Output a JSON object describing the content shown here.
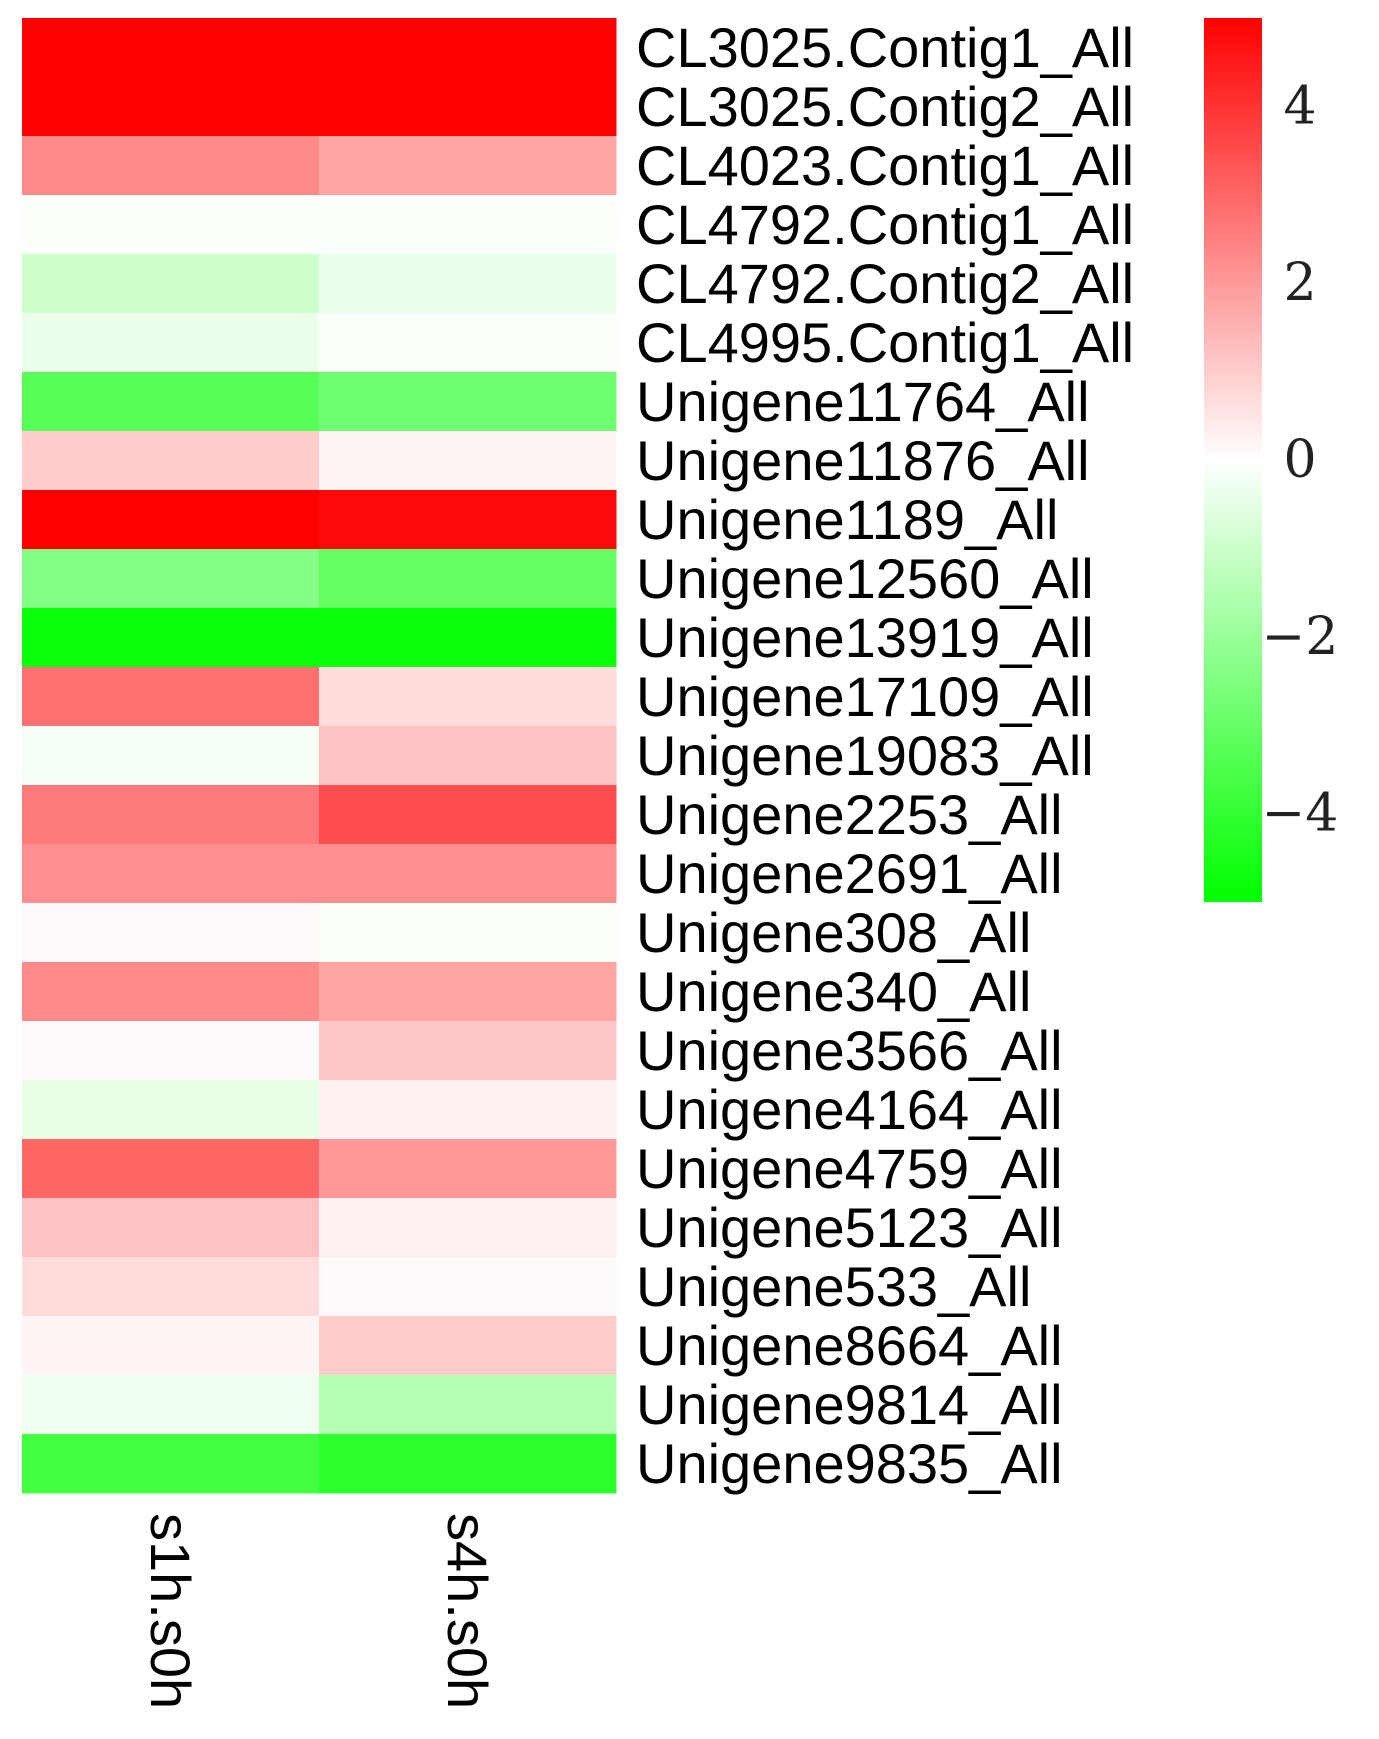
{
  "chart_data": {
    "type": "heatmap",
    "columns": [
      "s1h.s0h",
      "s4h.s0h"
    ],
    "rows": [
      "CL3025.Contig1_All",
      "CL3025.Contig2_All",
      "CL4023.Contig1_All",
      "CL4792.Contig1_All",
      "CL4792.Contig2_All",
      "CL4995.Contig1_All",
      "Unigene11764_All",
      "Unigene11876_All",
      "Unigene1189_All",
      "Unigene12560_All",
      "Unigene13919_All",
      "Unigene17109_All",
      "Unigene19083_All",
      "Unigene2253_All",
      "Unigene2691_All",
      "Unigene308_All",
      "Unigene340_All",
      "Unigene3566_All",
      "Unigene4164_All",
      "Unigene4759_All",
      "Unigene5123_All",
      "Unigene533_All",
      "Unigene8664_All",
      "Unigene9814_All",
      "Unigene9835_All"
    ],
    "values": [
      [
        5.0,
        5.0
      ],
      [
        5.0,
        5.0
      ],
      [
        2.3,
        1.8
      ],
      [
        -0.1,
        -0.1
      ],
      [
        -1.0,
        -0.4
      ],
      [
        -0.4,
        -0.1
      ],
      [
        -3.3,
        -2.8
      ],
      [
        1.0,
        0.2
      ],
      [
        5.0,
        4.8
      ],
      [
        -2.4,
        -3.0
      ],
      [
        -4.8,
        -4.8
      ],
      [
        2.8,
        0.7
      ],
      [
        -0.2,
        1.2
      ],
      [
        2.6,
        3.5
      ],
      [
        2.2,
        2.2
      ],
      [
        0.1,
        -0.1
      ],
      [
        2.3,
        1.8
      ],
      [
        0.1,
        1.1
      ],
      [
        -0.5,
        0.3
      ],
      [
        3.0,
        2.0
      ],
      [
        1.2,
        0.3
      ],
      [
        0.7,
        0.1
      ],
      [
        0.2,
        1.0
      ],
      [
        -0.3,
        -1.5
      ],
      [
        -3.7,
        -4.1
      ]
    ],
    "colorbar": {
      "min": -5,
      "max": 5,
      "ticks": [
        {
          "value": 4,
          "label": "4"
        },
        {
          "value": 2,
          "label": "2"
        },
        {
          "value": 0,
          "label": "0"
        },
        {
          "value": -2,
          "label": "−2"
        },
        {
          "value": -4,
          "label": "−4"
        }
      ],
      "low_color": "#00ff00",
      "mid_color": "#ffffff",
      "high_color": "#ff0000"
    }
  }
}
